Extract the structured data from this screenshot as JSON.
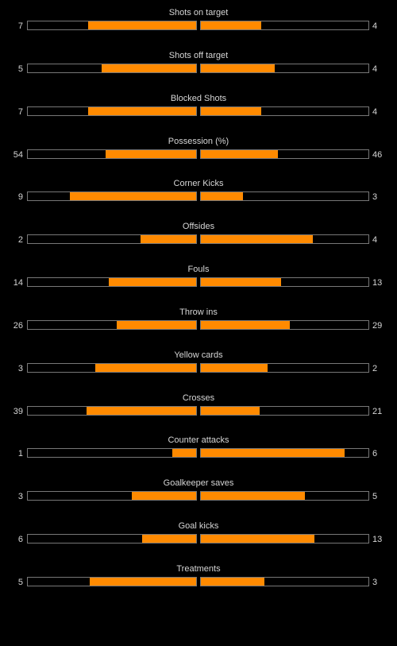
{
  "colors": {
    "background": "#000000",
    "bar_fill": "#ff8a00",
    "bar_border": "#777777",
    "text": "#d6d6d6"
  },
  "stats": [
    {
      "label": "Shots on target",
      "home": "7",
      "away": "4",
      "home_fill": 0.64,
      "away_fill": 0.36
    },
    {
      "label": "Shots off target",
      "home": "5",
      "away": "4",
      "home_fill": 0.56,
      "away_fill": 0.44
    },
    {
      "label": "Blocked Shots",
      "home": "7",
      "away": "4",
      "home_fill": 0.64,
      "away_fill": 0.36
    },
    {
      "label": "Possession (%)",
      "home": "54",
      "away": "46",
      "home_fill": 0.54,
      "away_fill": 0.46
    },
    {
      "label": "Corner Kicks",
      "home": "9",
      "away": "3",
      "home_fill": 0.75,
      "away_fill": 0.25
    },
    {
      "label": "Offsides",
      "home": "2",
      "away": "4",
      "home_fill": 0.33,
      "away_fill": 0.67
    },
    {
      "label": "Fouls",
      "home": "14",
      "away": "13",
      "home_fill": 0.52,
      "away_fill": 0.48
    },
    {
      "label": "Throw ins",
      "home": "26",
      "away": "29",
      "home_fill": 0.47,
      "away_fill": 0.53
    },
    {
      "label": "Yellow cards",
      "home": "3",
      "away": "2",
      "home_fill": 0.6,
      "away_fill": 0.4
    },
    {
      "label": "Crosses",
      "home": "39",
      "away": "21",
      "home_fill": 0.65,
      "away_fill": 0.35
    },
    {
      "label": "Counter attacks",
      "home": "1",
      "away": "6",
      "home_fill": 0.14,
      "away_fill": 0.86
    },
    {
      "label": "Goalkeeper saves",
      "home": "3",
      "away": "5",
      "home_fill": 0.38,
      "away_fill": 0.62
    },
    {
      "label": "Goal kicks",
      "home": "6",
      "away": "13",
      "home_fill": 0.32,
      "away_fill": 0.68
    },
    {
      "label": "Treatments",
      "home": "5",
      "away": "3",
      "home_fill": 0.63,
      "away_fill": 0.38
    }
  ]
}
